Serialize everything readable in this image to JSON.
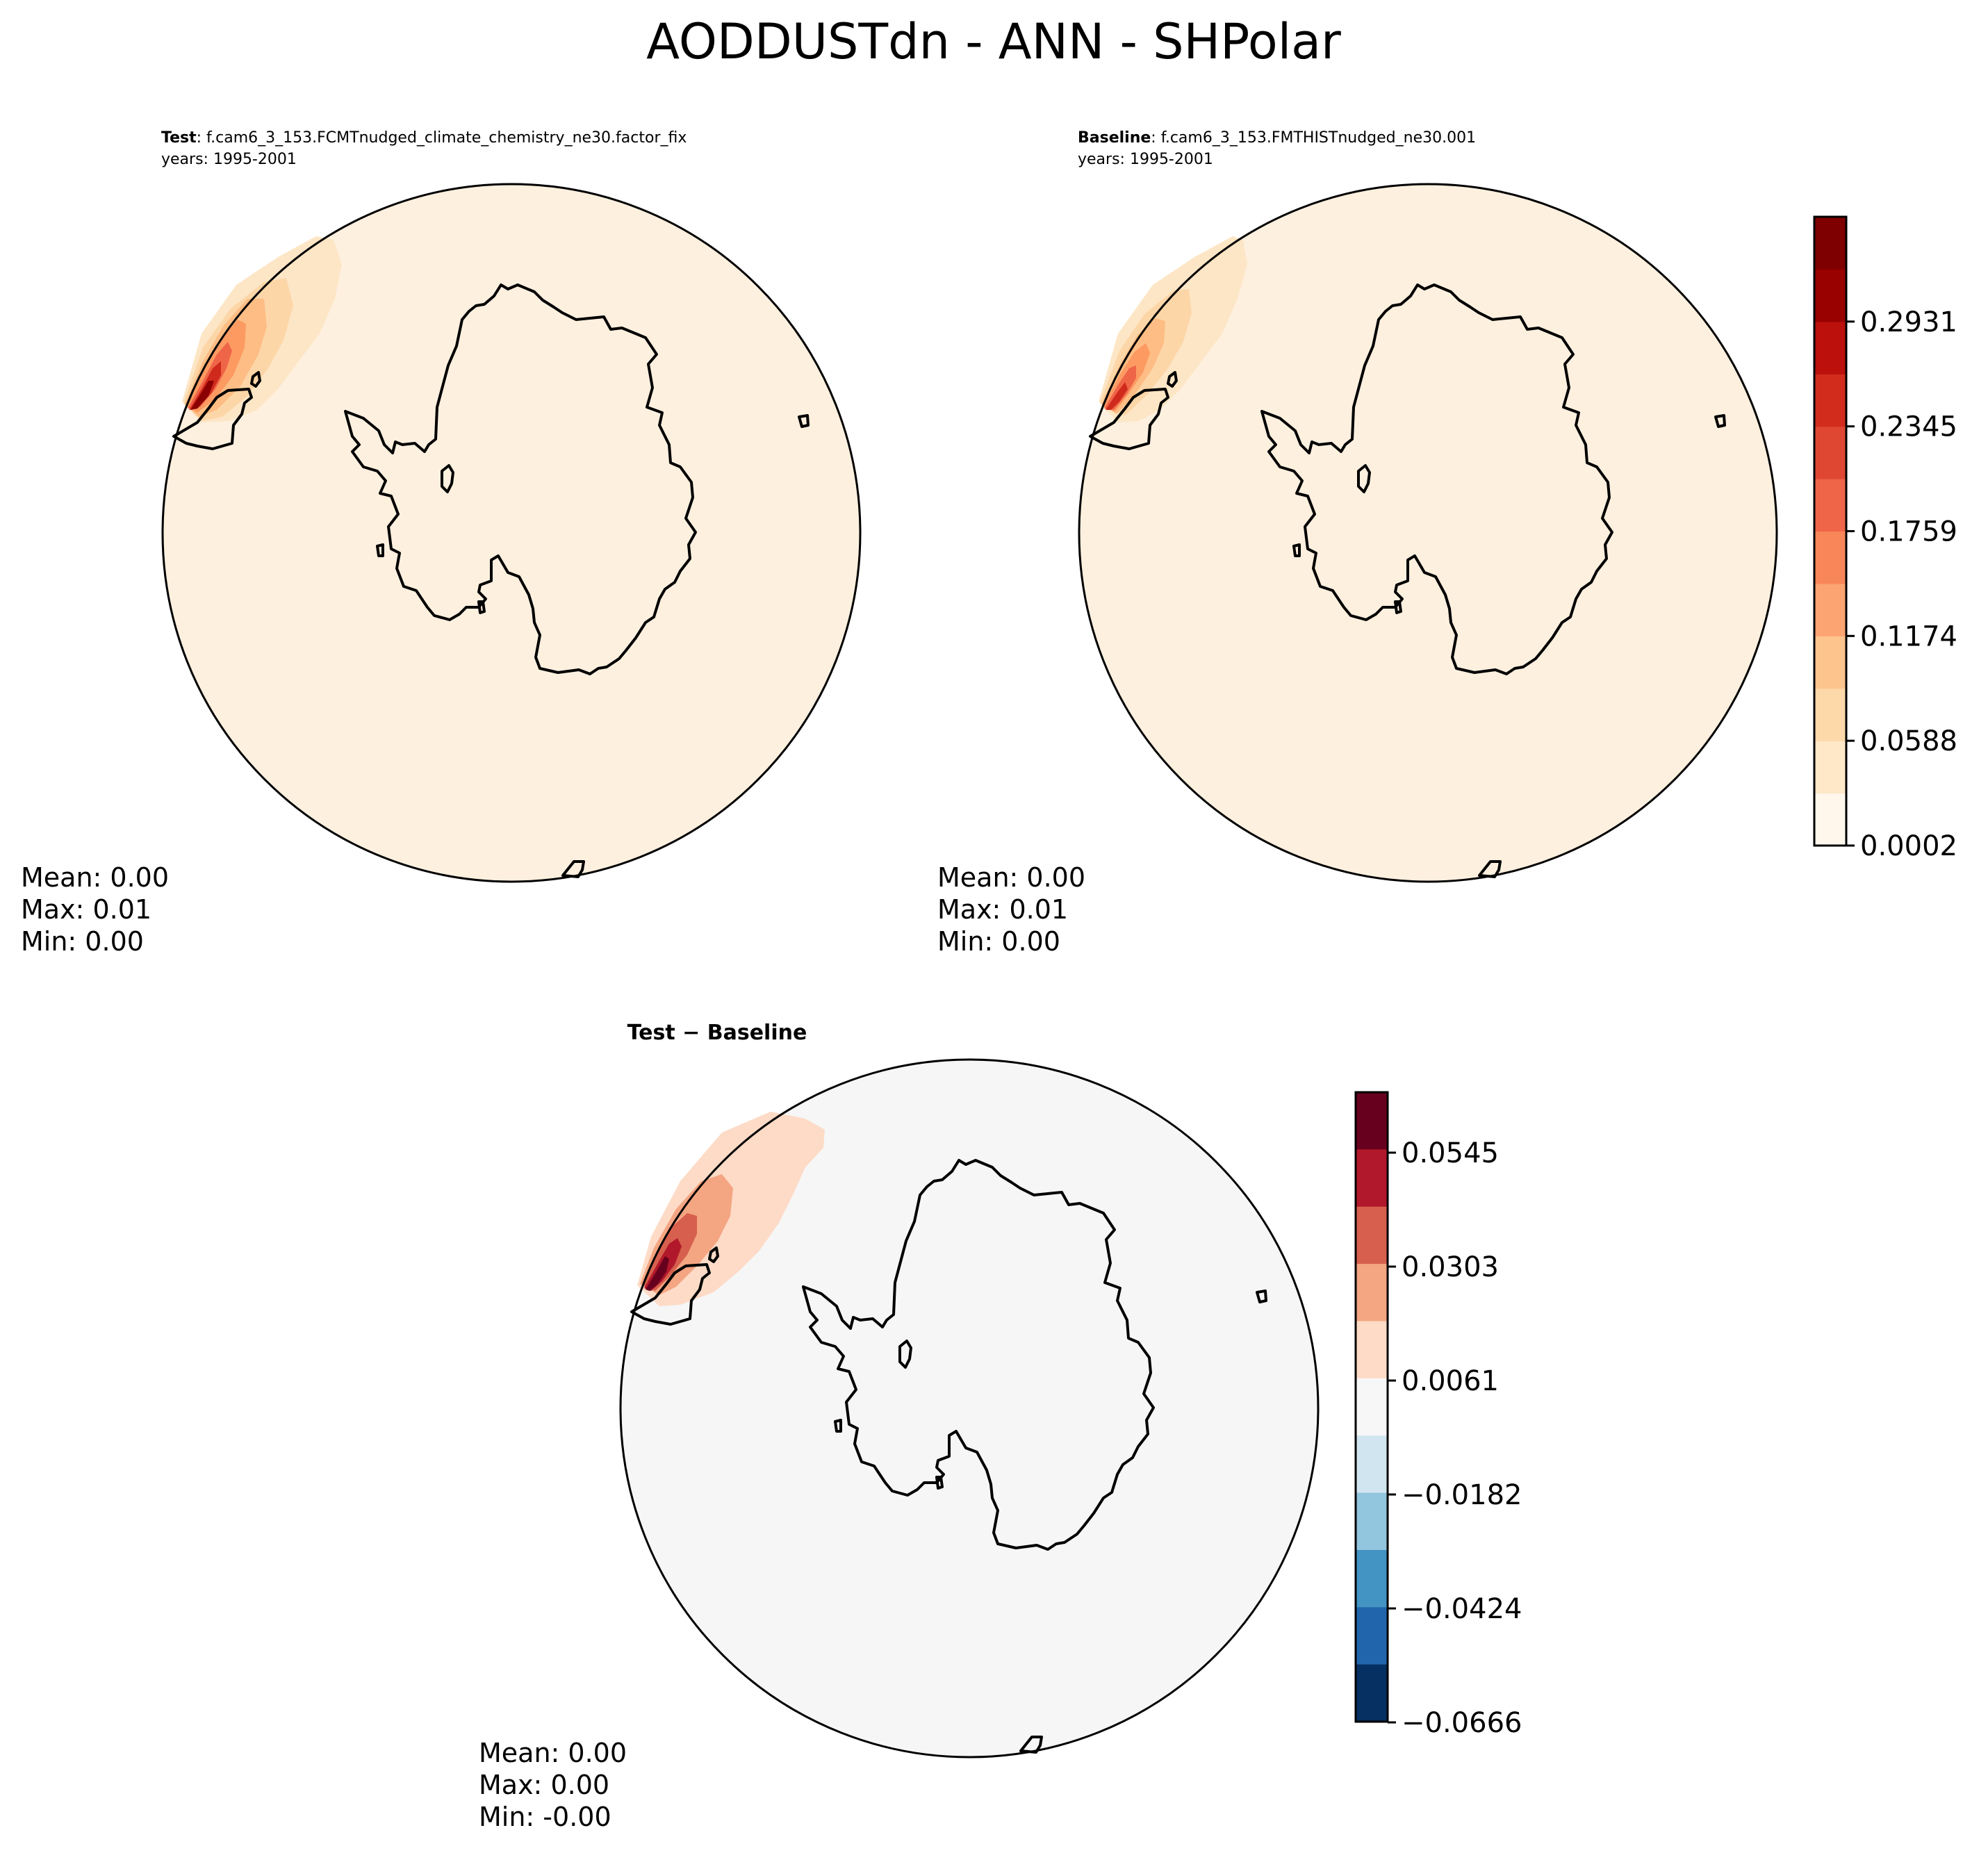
{
  "figure": {
    "title": "AODDUSTdn - ANN - SHPolar"
  },
  "panels": {
    "test": {
      "label": "Test",
      "case": ": f.cam6_3_153.FCMTnudged_climate_chemistry_ne30.factor_fix",
      "years": "years: 1995-2001",
      "stats": {
        "mean": "Mean:  0.00",
        "max": "Max:  0.01",
        "min": "Min:  0.00"
      }
    },
    "baseline": {
      "label": "Baseline",
      "case": ": f.cam6_3_153.FMTHISTnudged_ne30.001",
      "years": "years: 1995-2001",
      "stats": {
        "mean": "Mean:  0.00",
        "max": "Max:  0.01",
        "min": "Min:  0.00"
      }
    },
    "diff": {
      "title": "Test − Baseline",
      "stats": {
        "mean": "Mean:  0.00",
        "max": "Max:  0.00",
        "min": "Min: -0.00"
      }
    }
  },
  "chart_data": [
    {
      "type": "heatmap",
      "projection": "south-polar-stereographic",
      "name": "Test",
      "colormap": "OrRd",
      "background_level": 0.0002,
      "levels": [
        0.0002,
        0.0588,
        0.1174,
        0.1759,
        0.2345,
        0.2931
      ],
      "stats": {
        "mean": 0.0,
        "max": 0.01,
        "min": 0.0
      }
    },
    {
      "type": "heatmap",
      "projection": "south-polar-stereographic",
      "name": "Baseline",
      "colormap": "OrRd",
      "background_level": 0.0002,
      "levels": [
        0.0002,
        0.0588,
        0.1174,
        0.1759,
        0.2345,
        0.2931
      ],
      "colorbar": {
        "ticks": [
          "0.0002",
          "0.0588",
          "0.1174",
          "0.1759",
          "0.2345",
          "0.2931"
        ],
        "colors": [
          "#fff7ec",
          "#fee8c8",
          "#fdd8a8",
          "#fdc48e",
          "#fca572",
          "#f88659",
          "#ef6548",
          "#df4732",
          "#d22c1c",
          "#bb100b",
          "#990000",
          "#7f0000"
        ]
      },
      "stats": {
        "mean": 0.0,
        "max": 0.01,
        "min": 0.0
      }
    },
    {
      "type": "heatmap",
      "projection": "south-polar-stereographic",
      "name": "Test − Baseline",
      "colormap": "RdBu_r",
      "levels": [
        -0.0666,
        -0.0424,
        -0.0182,
        0.0061,
        0.0303,
        0.0545
      ],
      "colorbar": {
        "ticks": [
          "0.0545",
          "0.0303",
          "0.0061",
          "−0.0182",
          "−0.0424",
          "−0.0666"
        ],
        "colors": [
          "#67001f",
          "#b2182b",
          "#d6604d",
          "#f4a582",
          "#fddbc7",
          "#f7f7f7",
          "#d1e5f0",
          "#92c5de",
          "#4393c3",
          "#2166ac",
          "#053061"
        ]
      },
      "stats": {
        "mean": 0.0,
        "max": 0.0,
        "min": -0.0
      }
    }
  ]
}
